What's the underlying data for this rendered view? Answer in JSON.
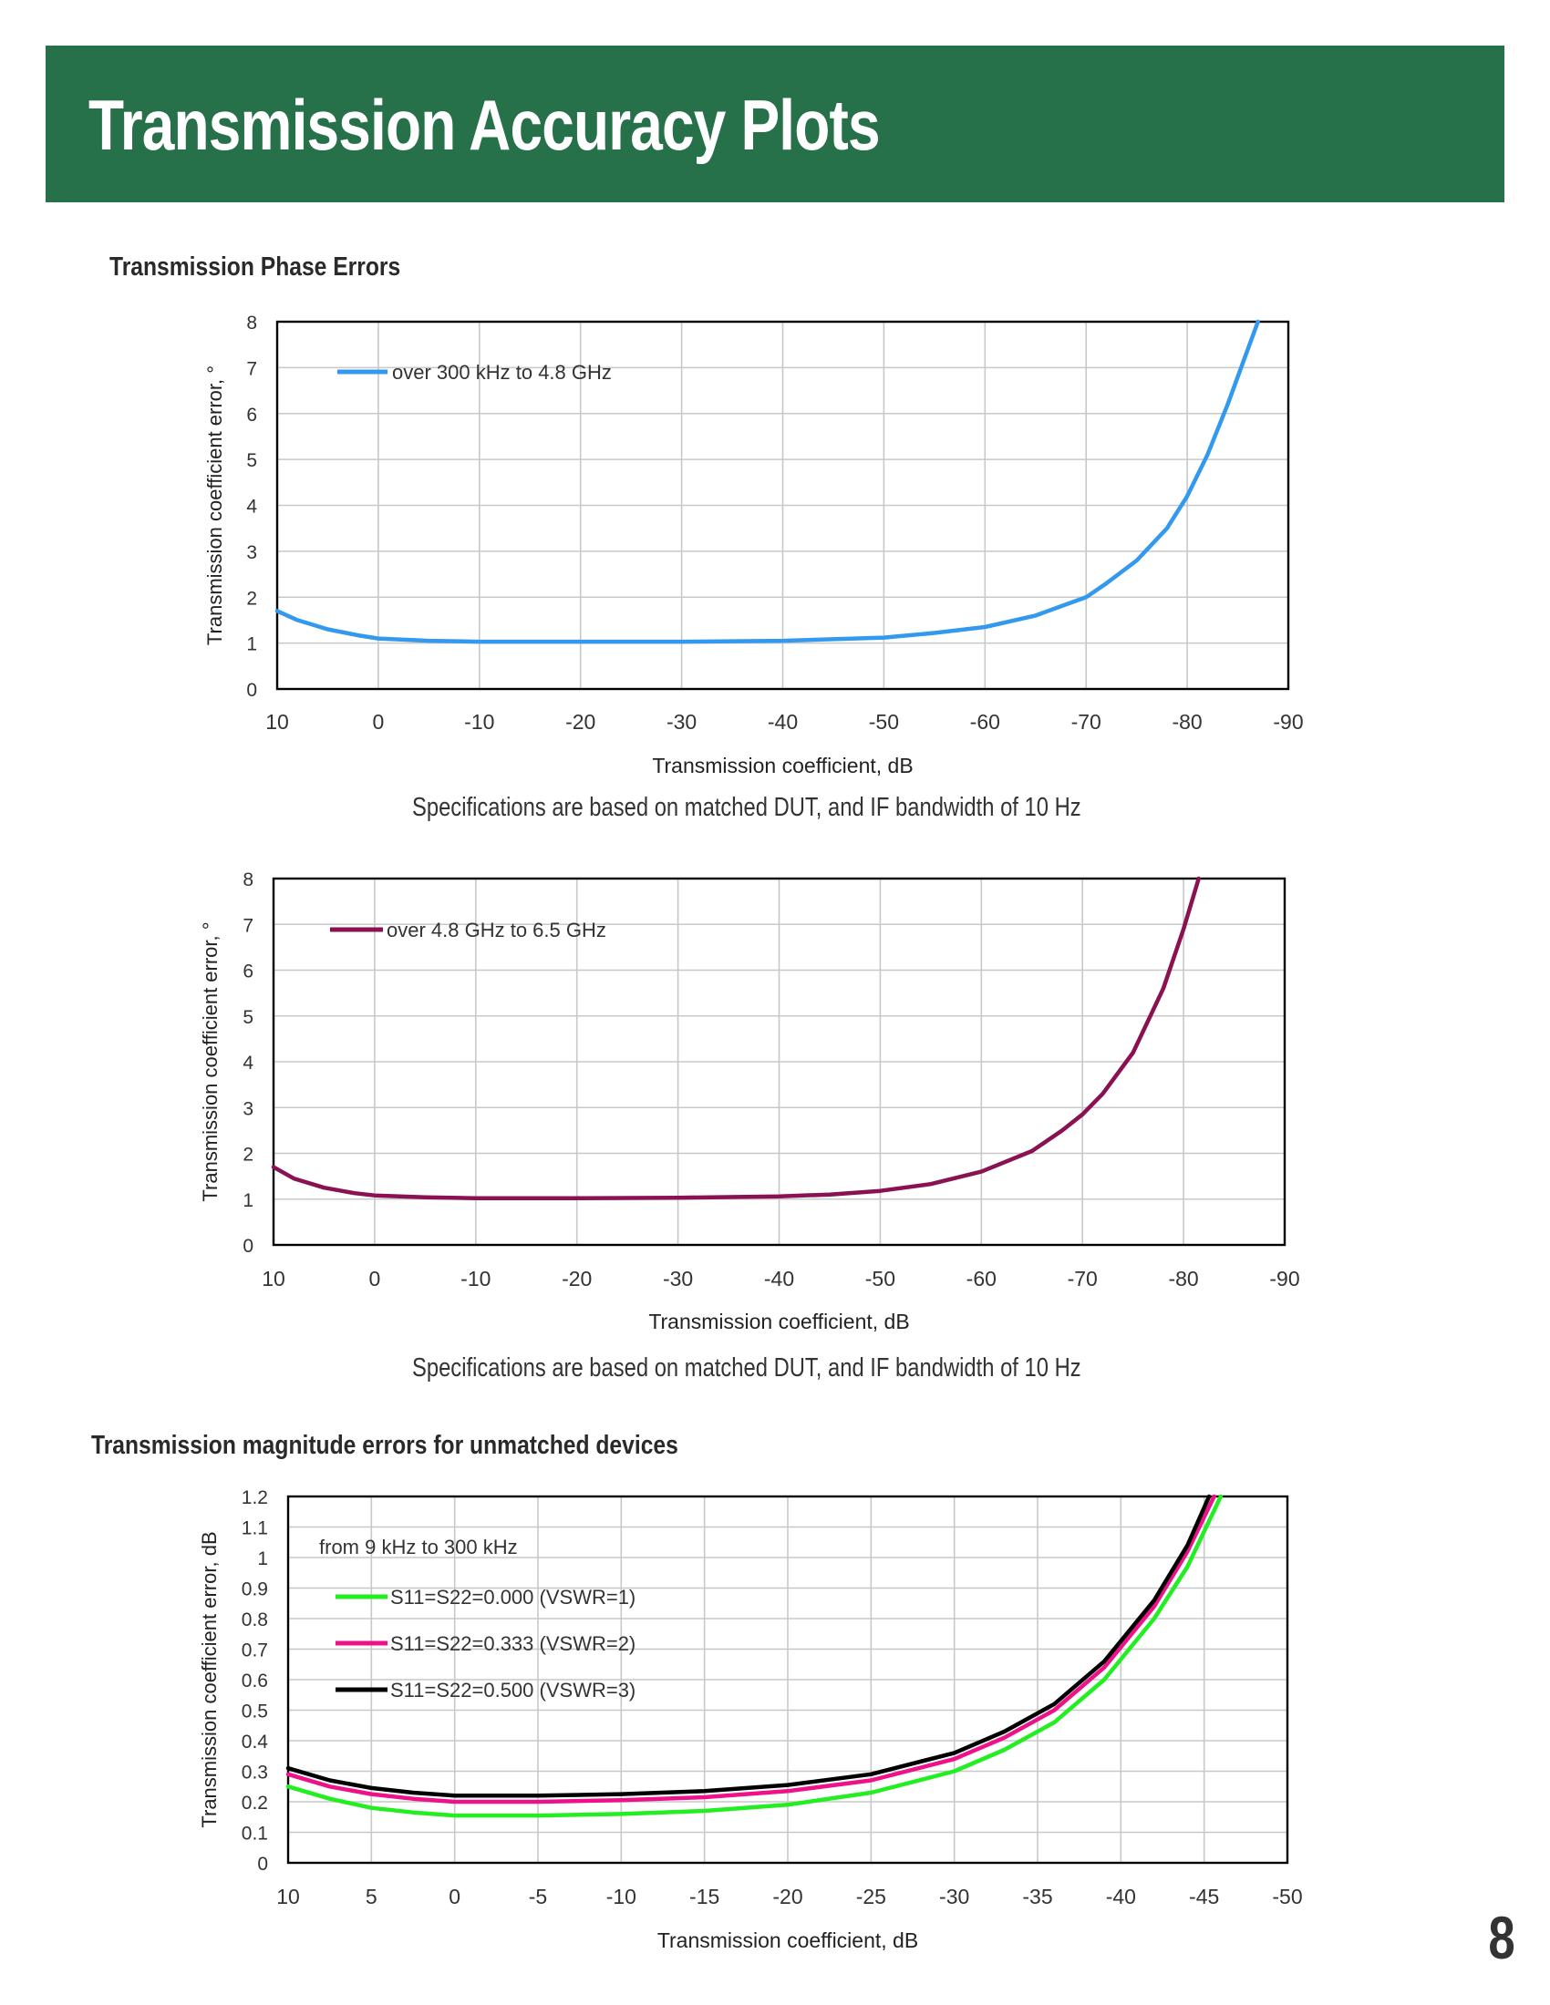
{
  "page": {
    "title": "Transmission Accuracy Plots",
    "page_number": "8"
  },
  "sections": {
    "phase_errors_heading": "Transmission Phase Errors",
    "magnitude_errors_heading": "Transmission magnitude errors for unmatched devices"
  },
  "notes": {
    "chart1": "Specifications are based on matched DUT, and IF bandwidth of 10 Hz",
    "chart2": "Specifications are based on matched DUT, and IF bandwidth of 10 Hz"
  },
  "chart_data": [
    {
      "type": "line",
      "xlabel": "Transmission coefficient, dB",
      "ylabel": "Transmission coefficient error, °",
      "xlim": [
        10,
        -90
      ],
      "ylim": [
        0,
        8
      ],
      "x_ticks": [
        10,
        0,
        -10,
        -20,
        -30,
        -40,
        -50,
        -60,
        -70,
        -80,
        -90
      ],
      "x_tick_labels": [
        "10",
        "0",
        "-10",
        "-20",
        "-30",
        "-40",
        "-50",
        "-60",
        "-70",
        "-80",
        "-90"
      ],
      "y_ticks": [
        0,
        1,
        2,
        3,
        4,
        5,
        6,
        7,
        8
      ],
      "y_tick_labels": [
        "0",
        "1",
        "2",
        "3",
        "4",
        "5",
        "6",
        "7",
        "8"
      ],
      "grid": true,
      "legend_position": "top-left",
      "series": [
        {
          "name": "over 300 kHz to 4.8 GHz",
          "color": "#3399ee",
          "x": [
            10,
            8,
            5,
            2,
            0,
            -5,
            -10,
            -20,
            -30,
            -40,
            -50,
            -55,
            -60,
            -65,
            -70,
            -72,
            -75,
            -78,
            -80,
            -82,
            -84,
            -86,
            -87
          ],
          "y": [
            1.7,
            1.5,
            1.3,
            1.17,
            1.1,
            1.05,
            1.03,
            1.03,
            1.03,
            1.05,
            1.12,
            1.22,
            1.35,
            1.6,
            2.0,
            2.3,
            2.8,
            3.5,
            4.2,
            5.1,
            6.2,
            7.4,
            8.0
          ]
        }
      ]
    },
    {
      "type": "line",
      "xlabel": "Transmission coefficient, dB",
      "ylabel": "Transmission coefficient error, °",
      "xlim": [
        10,
        -90
      ],
      "ylim": [
        0,
        8
      ],
      "x_ticks": [
        10,
        0,
        -10,
        -20,
        -30,
        -40,
        -50,
        -60,
        -70,
        -80,
        -90
      ],
      "x_tick_labels": [
        "10",
        "0",
        "-10",
        "-20",
        "-30",
        "-40",
        "-50",
        "-60",
        "-70",
        "-80",
        "-90"
      ],
      "y_ticks": [
        0,
        1,
        2,
        3,
        4,
        5,
        6,
        7,
        8
      ],
      "y_tick_labels": [
        "0",
        "1",
        "2",
        "3",
        "4",
        "5",
        "6",
        "7",
        "8"
      ],
      "grid": true,
      "legend_position": "top-left",
      "series": [
        {
          "name": "over 4.8 GHz to 6.5 GHz",
          "color": "#8b1252",
          "x": [
            10,
            8,
            5,
            2,
            0,
            -5,
            -10,
            -20,
            -30,
            -40,
            -45,
            -50,
            -55,
            -60,
            -65,
            -68,
            -70,
            -72,
            -75,
            -78,
            -80,
            -81.5
          ],
          "y": [
            1.7,
            1.45,
            1.25,
            1.13,
            1.08,
            1.04,
            1.02,
            1.02,
            1.03,
            1.06,
            1.1,
            1.18,
            1.33,
            1.6,
            2.05,
            2.5,
            2.85,
            3.3,
            4.2,
            5.6,
            6.9,
            8.0
          ]
        }
      ]
    },
    {
      "type": "line",
      "title": "from 9 kHz to 300 kHz",
      "xlabel": "Transmission coefficient, dB",
      "ylabel": "Transmission coefficient error, dB",
      "xlim": [
        10,
        -50
      ],
      "ylim": [
        0,
        1.2
      ],
      "x_ticks": [
        10,
        5,
        0,
        -5,
        -10,
        -15,
        -20,
        -25,
        -30,
        -35,
        -40,
        -45,
        -50
      ],
      "x_tick_labels": [
        "10",
        "5",
        "0",
        "-5",
        "-10",
        "-15",
        "-20",
        "-25",
        "-30",
        "-35",
        "-40",
        "-45",
        "-50"
      ],
      "y_ticks": [
        0,
        0.1,
        0.2,
        0.3,
        0.4,
        0.5,
        0.6,
        0.7,
        0.8,
        0.9,
        1,
        1.1,
        1.2
      ],
      "y_tick_labels": [
        "0",
        "0.1",
        "0.2",
        "0.3",
        "0.4",
        "0.5",
        "0.6",
        "0.7",
        "0.8",
        "0.9",
        "1",
        "1.1",
        "1.2"
      ],
      "grid": true,
      "legend_position": "top-left",
      "series": [
        {
          "name": "S11=S22=0.000 (VSWR=1)",
          "color": "#22ee22",
          "x": [
            10,
            7.5,
            5,
            2.5,
            0,
            -5,
            -10,
            -15,
            -20,
            -25,
            -30,
            -33,
            -36,
            -39,
            -42,
            -44,
            -46
          ],
          "y": [
            0.25,
            0.21,
            0.18,
            0.165,
            0.155,
            0.155,
            0.16,
            0.17,
            0.19,
            0.23,
            0.3,
            0.37,
            0.46,
            0.6,
            0.8,
            0.97,
            1.2
          ]
        },
        {
          "name": "S11=S22=0.333 (VSWR=2)",
          "color": "#ee1188",
          "x": [
            10,
            7.5,
            5,
            2.5,
            0,
            -5,
            -10,
            -15,
            -20,
            -25,
            -30,
            -33,
            -36,
            -39,
            -42,
            -44,
            -45.6
          ],
          "y": [
            0.29,
            0.25,
            0.225,
            0.21,
            0.2,
            0.2,
            0.205,
            0.215,
            0.235,
            0.27,
            0.34,
            0.41,
            0.5,
            0.64,
            0.84,
            1.02,
            1.2
          ]
        },
        {
          "name": "S11=S22=0.500 (VSWR=3)",
          "color": "#000000",
          "x": [
            10,
            7.5,
            5,
            2.5,
            0,
            -5,
            -10,
            -15,
            -20,
            -25,
            -30,
            -33,
            -36,
            -39,
            -42,
            -44,
            -45.3
          ],
          "y": [
            0.31,
            0.27,
            0.245,
            0.23,
            0.22,
            0.22,
            0.225,
            0.235,
            0.255,
            0.29,
            0.36,
            0.43,
            0.52,
            0.66,
            0.86,
            1.04,
            1.2
          ]
        }
      ]
    }
  ]
}
